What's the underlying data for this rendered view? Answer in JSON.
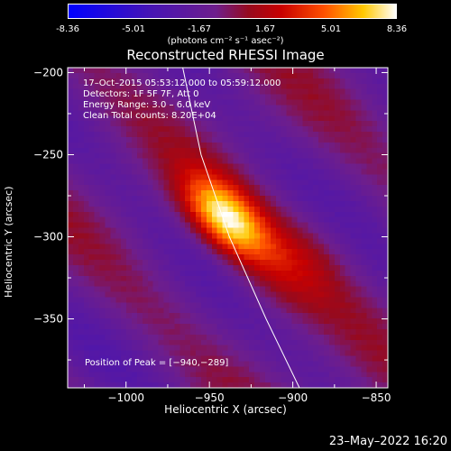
{
  "colorbar": {
    "ticks": [
      "-8.36",
      "-5.01",
      "-1.67",
      "1.67",
      "5.01",
      "8.36"
    ],
    "unit": "(photons cm⁻² s⁻¹ asec⁻²)",
    "range": [
      -8.36,
      8.36
    ]
  },
  "chart_data": {
    "type": "heatmap",
    "title": "Reconstructed RHESSI Image",
    "xlabel": "Heliocentric X (arcsec)",
    "ylabel": "Heliocentric Y (arcsec)",
    "xlim": [
      -1035,
      -843
    ],
    "ylim": [
      -392,
      -197
    ],
    "xticks": [
      -1000,
      -950,
      -900,
      -850
    ],
    "yticks": [
      -200,
      -250,
      -300,
      -350
    ],
    "xtick_labels": [
      "−1000",
      "−950",
      "−900",
      "−850"
    ],
    "ytick_labels": [
      "−200",
      "−250",
      "−300",
      "−350"
    ],
    "peak": [
      -940,
      -289
    ],
    "peak_value": 8.36,
    "limb_curve": [
      [
        -966,
        -197
      ],
      [
        -955,
        -250
      ],
      [
        -938,
        -300
      ],
      [
        -916,
        -350
      ],
      [
        -896,
        -392
      ]
    ]
  },
  "annotations": {
    "time": "17–Oct–2015 05:53:12.000 to 05:59:12.000",
    "detectors": "Detectors: 1F 5F 7F, Att 0",
    "energy": "Energy Range: 3.0 – 6.0 keV",
    "clean": "Clean    Total counts: 8.20E+04",
    "peak": "Position of Peak = [−940,−289]"
  },
  "footer": {
    "date": "23–May–2022 16:20"
  }
}
